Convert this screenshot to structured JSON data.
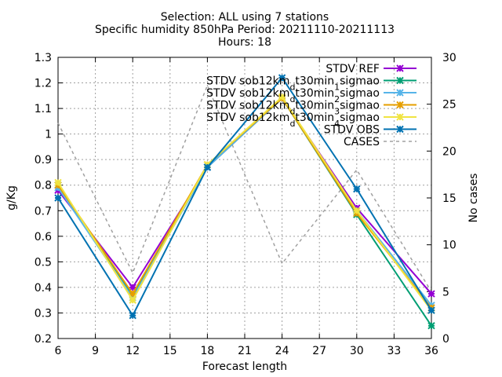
{
  "chart_data": {
    "type": "line",
    "title": [
      "Selection: ALL using      7 stations",
      "Specific humidity 850hPa   Period: 20211110-20211113",
      "Hours: 18"
    ],
    "xlabel": "Forecast length",
    "ylabel": "g/Kg",
    "y2label": "No cases",
    "x": [
      6,
      12,
      18,
      24,
      30,
      36
    ],
    "xlim": [
      6,
      36
    ],
    "xticks": [
      6,
      9,
      12,
      15,
      18,
      21,
      24,
      27,
      30,
      33,
      36
    ],
    "ylim": [
      0.2,
      1.3
    ],
    "yticks": [
      "0.2",
      "0.3",
      "0.4",
      "0.5",
      "0.6",
      "0.7",
      "0.8",
      "0.9",
      "1",
      "1.1",
      "1.2",
      "1.3"
    ],
    "y2lim": [
      0,
      30
    ],
    "y2ticks": [
      "0",
      "5",
      "10",
      "15",
      "20",
      "25",
      "30"
    ],
    "grid": true,
    "legend_position": "top-right",
    "series": [
      {
        "name": "STDV REF",
        "axis": "y1",
        "color": "#9400d3",
        "dashed": false,
        "values": [
          0.78,
          0.4,
          0.87,
          1.14,
          0.71,
          0.375
        ]
      },
      {
        "name_parts": [
          "STDV sob12km",
          "d",
          "t30min",
          "1",
          "sigmao"
        ],
        "axis": "y1",
        "color": "#009e73",
        "dashed": false,
        "values": [
          0.8,
          0.37,
          0.87,
          1.14,
          0.685,
          0.25
        ]
      },
      {
        "name_parts": [
          "STDV sob12km",
          "d",
          "t30min",
          "2",
          "sigmao"
        ],
        "axis": "y1",
        "color": "#56b4e9",
        "dashed": false,
        "values": [
          0.79,
          0.36,
          0.87,
          1.14,
          0.7,
          0.33
        ]
      },
      {
        "name_parts": [
          "STDV sob12km",
          "d",
          "t30min",
          "3",
          "sigmao"
        ],
        "axis": "y1",
        "color": "#e69f00",
        "dashed": false,
        "values": [
          0.8,
          0.375,
          0.88,
          1.14,
          0.69,
          0.32
        ]
      },
      {
        "name_parts": [
          "STDV sob12km",
          "d",
          "t30min",
          "4",
          "sigmao"
        ],
        "axis": "y1",
        "color": "#f0e442",
        "dashed": false,
        "values": [
          0.81,
          0.35,
          0.88,
          1.145,
          0.7,
          0.31
        ]
      },
      {
        "name": "STDV OBS",
        "axis": "y1",
        "color": "#0072b2",
        "dashed": false,
        "values": [
          0.75,
          0.29,
          0.87,
          1.22,
          0.785,
          0.31
        ]
      },
      {
        "name": "CASES",
        "axis": "y2",
        "color": "#a0a0a0",
        "dashed": true,
        "markers": false,
        "values": [
          23,
          7,
          27,
          8,
          18,
          5
        ]
      }
    ]
  }
}
